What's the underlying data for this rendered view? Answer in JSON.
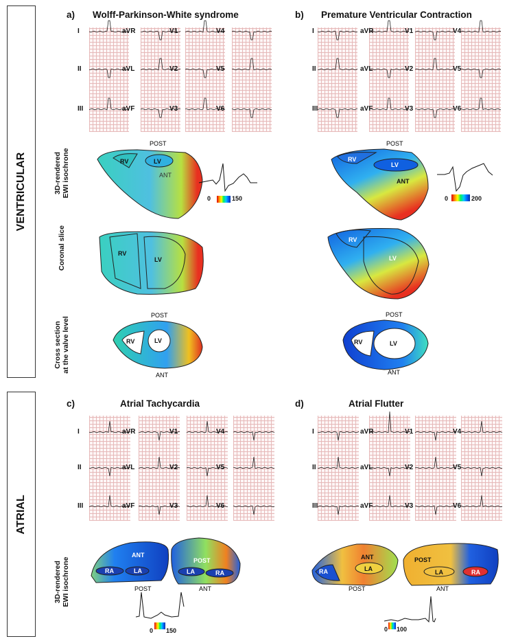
{
  "sections": {
    "ventricular": "VENTRICULAR",
    "atrial": "ATRIAL"
  },
  "panels": {
    "a": {
      "letter": "a)",
      "title": "Wolff-Parkinson-White syndrome"
    },
    "b": {
      "letter": "b)",
      "title": "Premature Ventricular Contraction"
    },
    "c": {
      "letter": "c)",
      "title": "Atrial Tachycardia"
    },
    "d": {
      "letter": "d)",
      "title": "Atrial Flutter"
    }
  },
  "leads": [
    [
      "I",
      "II",
      "III"
    ],
    [
      "aVR",
      "aVL",
      "aVF"
    ],
    [
      "V1",
      "V2",
      "V3"
    ],
    [
      "V4",
      "V5",
      "V6"
    ]
  ],
  "row_labels": {
    "isochrone_line1": "3D-rendered",
    "isochrone_line2": "EWI isochrone",
    "coronal": "Coronal slice",
    "cross_line1": "Cross section",
    "cross_line2": "at the valve level"
  },
  "anatomy": {
    "post": "POST",
    "ant": "ANT",
    "rv": "RV",
    "lv": "LV",
    "ra": "RA",
    "la": "LA"
  },
  "colorbars": {
    "a": {
      "min": "0",
      "max": "150",
      "order": "red-to-blue"
    },
    "b": {
      "min": "0",
      "max": "200",
      "order": "red-to-blue"
    },
    "c": {
      "min": "0",
      "max": "150",
      "order": "red-to-blue"
    },
    "d": {
      "min": "0",
      "max": "100",
      "order": "red-to-blue"
    }
  },
  "colors": {
    "early": "#d00000",
    "late": "#0030a0",
    "ecg_grid": "#e6b8b8"
  }
}
